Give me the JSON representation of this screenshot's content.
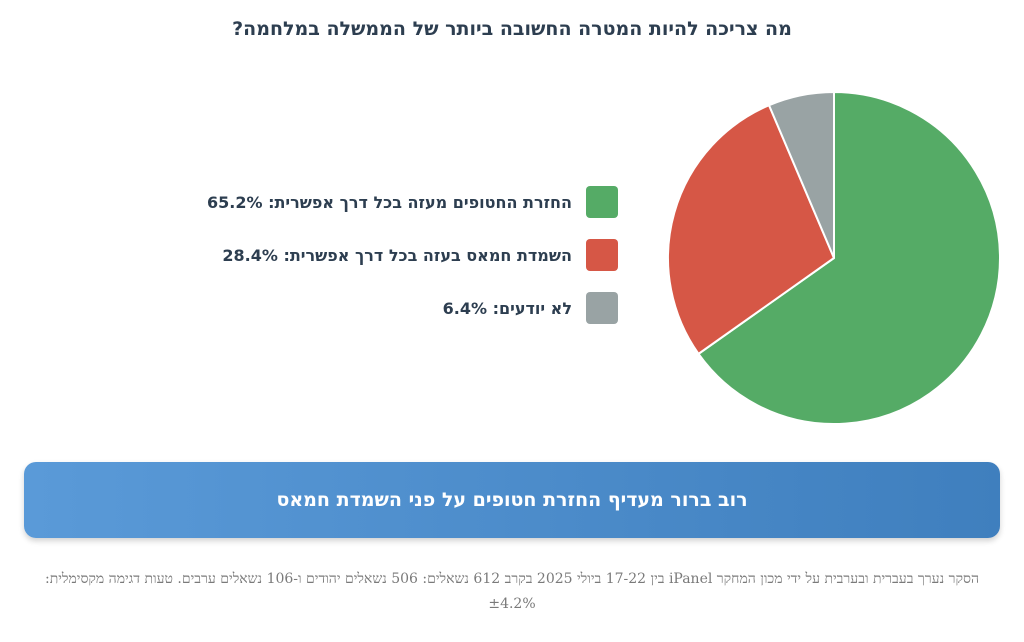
{
  "chart_data": {
    "type": "pie",
    "title": "מה צריכה להיות המטרה החשובה ביותר של הממשלה במלחמה?",
    "slices": [
      {
        "label": "החזרת החטופים מעזה בכל דרך אפשרית",
        "value": 65.2,
        "display": "65.2%",
        "color": "#55ab66"
      },
      {
        "label": "השמדת חמאס בעזה בכל דרך אפשרית",
        "value": 28.4,
        "display": "28.4%",
        "color": "#d65746"
      },
      {
        "label": "לא יודעים",
        "value": 6.4,
        "display": "6.4%",
        "color": "#99a3a4"
      }
    ]
  },
  "legend": {
    "items": [
      {
        "text": "החזרת החטופים מעזה בכל דרך אפשרית: 65.2%",
        "color": "#55ab66"
      },
      {
        "text": "השמדת חמאס בעזה בכל דרך אפשרית: 28.4%",
        "color": "#d65746"
      },
      {
        "text": "לא יודעים: 6.4%",
        "color": "#99a3a4"
      }
    ]
  },
  "banner": {
    "text": "רוב ברור מעדיף החזרת חטופים על פני השמדת חמאס"
  },
  "footnote": {
    "text": "הסקר נערך בעברית ובערבית על ידי מכון המחקר iPanel בין 17-22 ביולי 2025 בקרב 612 נשאלים: 506 נשאלים יהודים ו-106 נשאלים ערבים. טעות דגימה מקסימלית: ±4.2%"
  }
}
